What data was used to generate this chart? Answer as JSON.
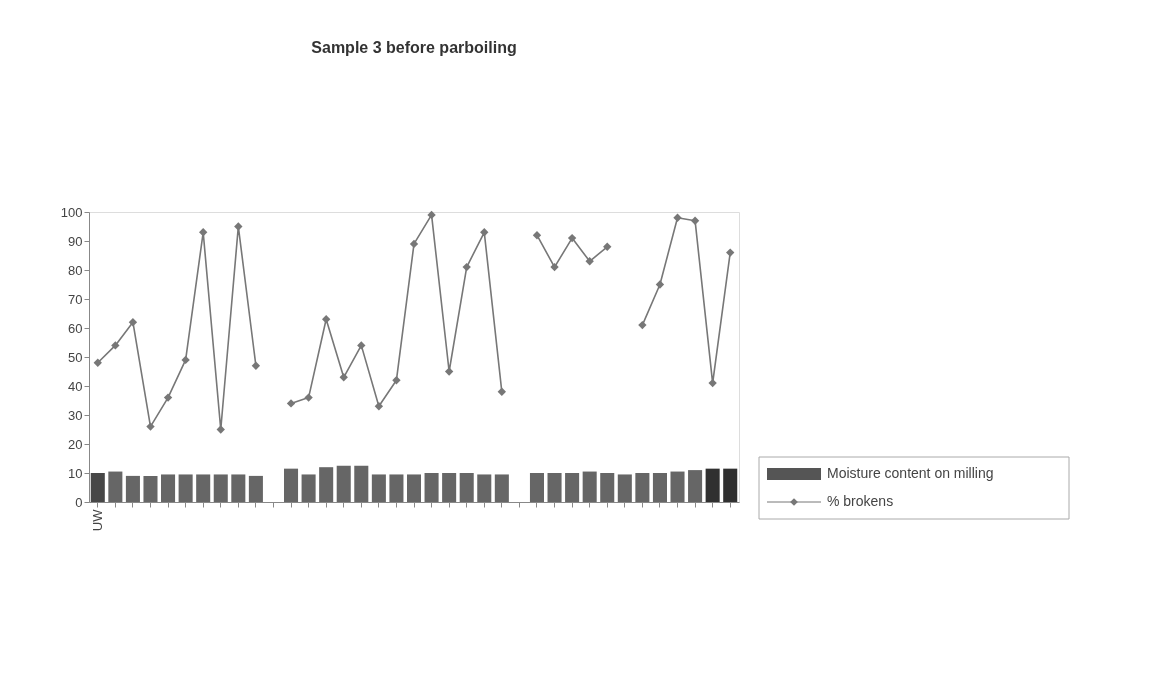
{
  "chart_data": {
    "type": "bar",
    "title": "Sample 3  before parboiling",
    "categories": [
      "UW",
      null,
      null,
      null,
      null,
      null,
      null,
      null,
      null,
      null,
      null,
      null,
      null,
      null,
      null,
      null,
      null,
      null,
      null,
      null,
      null,
      null,
      null,
      null,
      null,
      null,
      null,
      null,
      null,
      null,
      null,
      null,
      null,
      null,
      null,
      null,
      null
    ],
    "series": [
      {
        "name": "Moisture content on milling",
        "color": "#555555",
        "colors": [
          "#333333",
          "#555555",
          "#555555",
          "#555555",
          "#555555",
          "#555555",
          "#555555",
          "#555555",
          "#555555",
          "#555555",
          "#555555",
          "#555555",
          "#555555",
          "#555555",
          "#555555",
          "#555555",
          "#555555",
          "#555555",
          "#555555",
          "#555555",
          "#555555",
          "#555555",
          "#555555",
          "#555555",
          "#555555",
          "#555555",
          "#555555",
          "#555555",
          "#555555",
          "#555555",
          "#555555",
          "#555555",
          "#555555",
          "#555555",
          "#555555",
          "#1a1a1a",
          "#1a1a1a"
        ],
        "values": [
          10,
          10.5,
          9,
          9,
          9.5,
          9.5,
          9.5,
          9.5,
          9.5,
          9,
          null,
          11.5,
          9.5,
          12,
          12.5,
          12.5,
          9.5,
          9.5,
          9.5,
          10,
          10,
          10,
          9.5,
          9.5,
          null,
          10,
          10,
          10,
          10.5,
          10,
          9.5,
          10,
          10,
          10.5,
          11,
          11.5,
          11.5
        ]
      },
      {
        "name": "% brokens",
        "type": "line",
        "color": "#777777",
        "marker": "diamond",
        "values": [
          48,
          54,
          62,
          26,
          36,
          49,
          93,
          25,
          95,
          47,
          null,
          34,
          36,
          63,
          43,
          54,
          33,
          42,
          89,
          99,
          45,
          81,
          93,
          38,
          null,
          92,
          81,
          91,
          83,
          88,
          null,
          61,
          75,
          98,
          97,
          41,
          86
        ]
      }
    ],
    "ylim": [
      0,
      100
    ],
    "yticks": [
      0,
      10,
      20,
      30,
      40,
      50,
      60,
      70,
      80,
      90,
      100
    ],
    "grid": false,
    "legend": "bottom right"
  }
}
